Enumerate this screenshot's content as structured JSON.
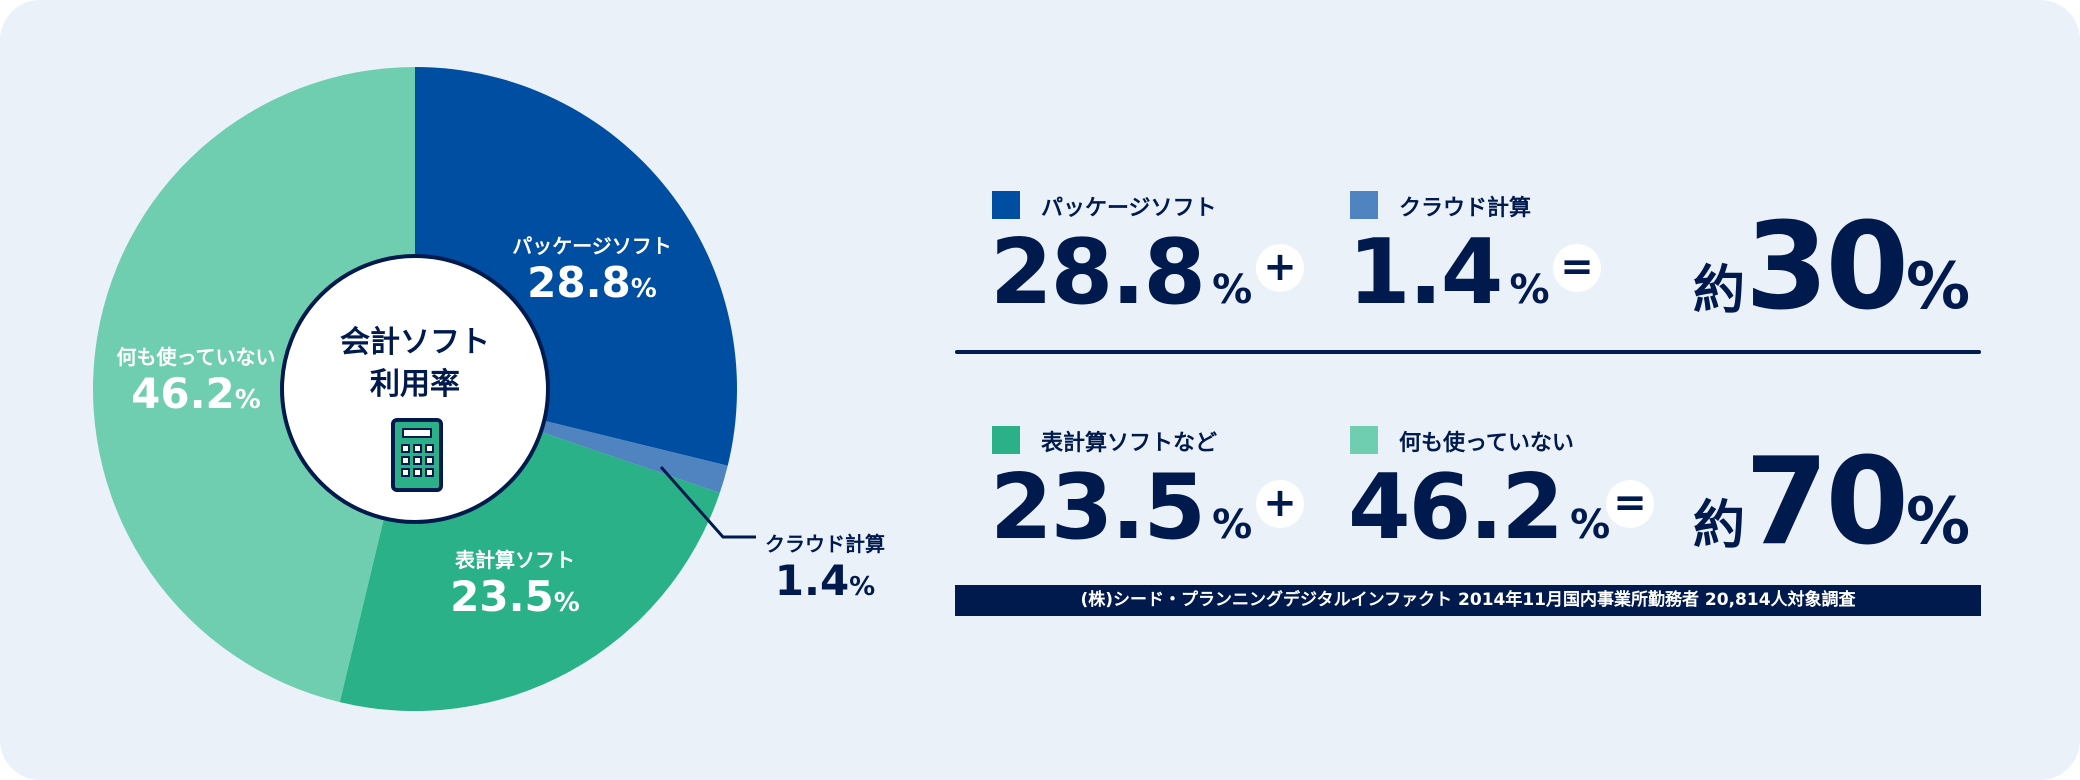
{
  "chart_data": {
    "type": "pie",
    "title": "会計ソフト利用率",
    "start": "top",
    "direction": "clockwise",
    "categories": [
      "パッケージソフト",
      "クラウド計算",
      "表計算ソフト",
      "何も使っていない"
    ],
    "values": [
      28.8,
      1.4,
      23.5,
      46.2
    ],
    "unit": "%",
    "colors": [
      "#004EA2",
      "#5084C0",
      "#2AB187",
      "#6FCDB0"
    ]
  },
  "center": {
    "line1": "会計ソフト",
    "line2": "利用率",
    "icon": "calculator-icon"
  },
  "slices": [
    {
      "label": "パッケージソフト",
      "value": "28.8",
      "unit": "%"
    },
    {
      "label": "クラウド計算",
      "value": "1.4",
      "unit": "%"
    },
    {
      "label": "表計算ソフト",
      "value": "23.5",
      "unit": "%"
    },
    {
      "label": "何も使っていない",
      "value": "46.2",
      "unit": "%"
    }
  ],
  "summary": {
    "row1": {
      "a": {
        "label": "パッケージソフト",
        "value": "28.8",
        "unit": "%",
        "color": "#004EA2"
      },
      "plus": "+",
      "b": {
        "label": "クラウド計算",
        "value": "1.4",
        "unit": "%",
        "color": "#5084C0"
      },
      "equals": "=",
      "result": {
        "prefix": "約",
        "value": "30",
        "unit": "%"
      }
    },
    "row2": {
      "a": {
        "label": "表計算ソフトなど",
        "value": "23.5",
        "unit": "%",
        "color": "#2AB187"
      },
      "plus": "+",
      "b": {
        "label": "何も使っていない",
        "value": "46.2",
        "unit": "%",
        "color": "#6FCDB0"
      },
      "equals": "=",
      "result": {
        "prefix": "約",
        "value": "70",
        "unit": "%"
      }
    },
    "source": "(株)シード・プランニングデジタルインファクト 2014年11月国内事業所勤務者 20,814人対象調査"
  },
  "colors": {
    "background": "#EAF1F9",
    "navy": "#001A4D"
  }
}
